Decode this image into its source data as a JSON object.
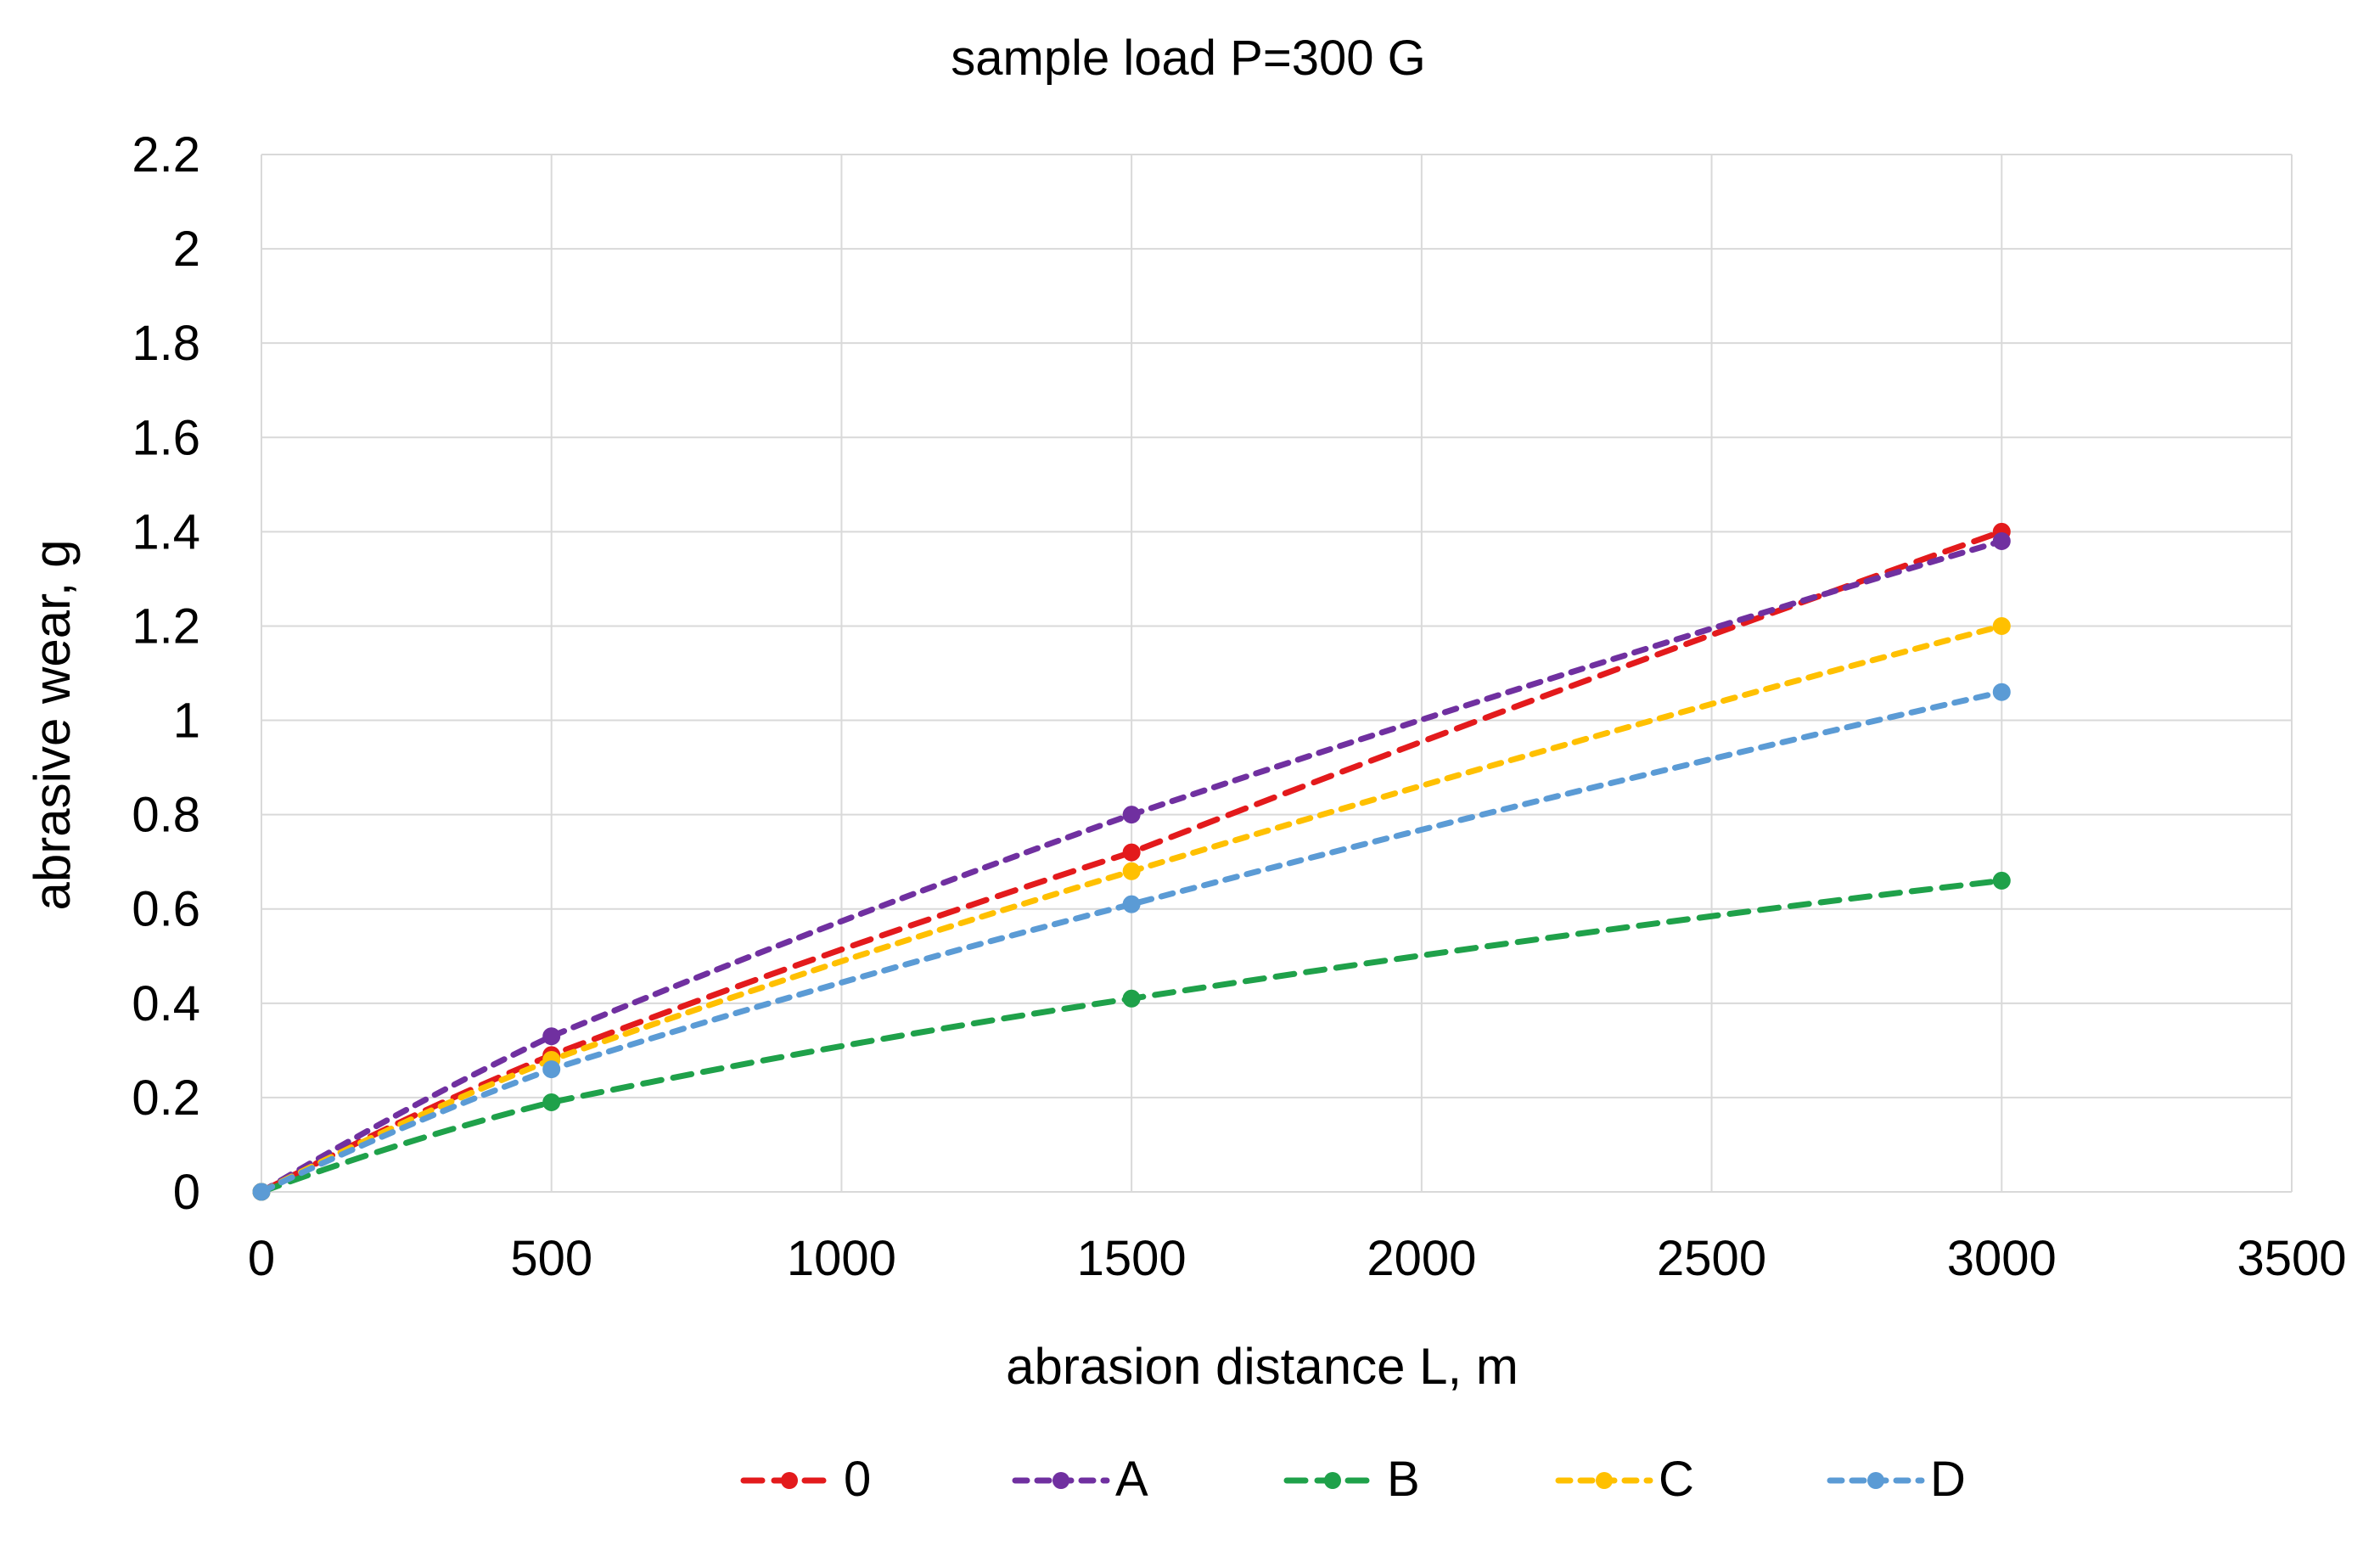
{
  "chart_data": {
    "type": "line",
    "title": "sample load P=300 G",
    "xlabel": "abrasion distance L, m",
    "ylabel": "abrasive wear, g",
    "xlim": [
      0,
      3500
    ],
    "ylim": [
      0,
      2.2
    ],
    "x_ticks": [
      0,
      500,
      1000,
      1500,
      2000,
      2500,
      3000,
      3500
    ],
    "y_ticks": [
      0,
      0.2,
      0.4,
      0.6,
      0.8,
      1,
      1.2,
      1.4,
      1.6,
      1.8,
      2,
      2.2
    ],
    "x_tick_labels": [
      "0",
      "500",
      "1000",
      "1500",
      "2000",
      "2500",
      "3000",
      "3500"
    ],
    "y_tick_labels": [
      "0",
      "0.2",
      "0.4",
      "0.6",
      "0.8",
      "1",
      "1.2",
      "1.4",
      "1.6",
      "1.8",
      "2",
      "2.2"
    ],
    "grid": true,
    "legend_position": "bottom",
    "x": [
      0,
      500,
      1500,
      3000
    ],
    "series": [
      {
        "name": "0",
        "values": [
          0,
          0.29,
          0.72,
          1.4
        ],
        "color": "#e31a1c",
        "dash": "long"
      },
      {
        "name": "A",
        "values": [
          0,
          0.33,
          0.8,
          1.38
        ],
        "color": "#7030a0",
        "dash": "short"
      },
      {
        "name": "B",
        "values": [
          0,
          0.19,
          0.41,
          0.66
        ],
        "color": "#1fa14a",
        "dash": "long"
      },
      {
        "name": "C",
        "values": [
          0,
          0.28,
          0.68,
          1.2
        ],
        "color": "#ffc000",
        "dash": "short"
      },
      {
        "name": "D",
        "values": [
          0,
          0.26,
          0.61,
          1.06
        ],
        "color": "#5b9bd5",
        "dash": "short"
      }
    ]
  }
}
